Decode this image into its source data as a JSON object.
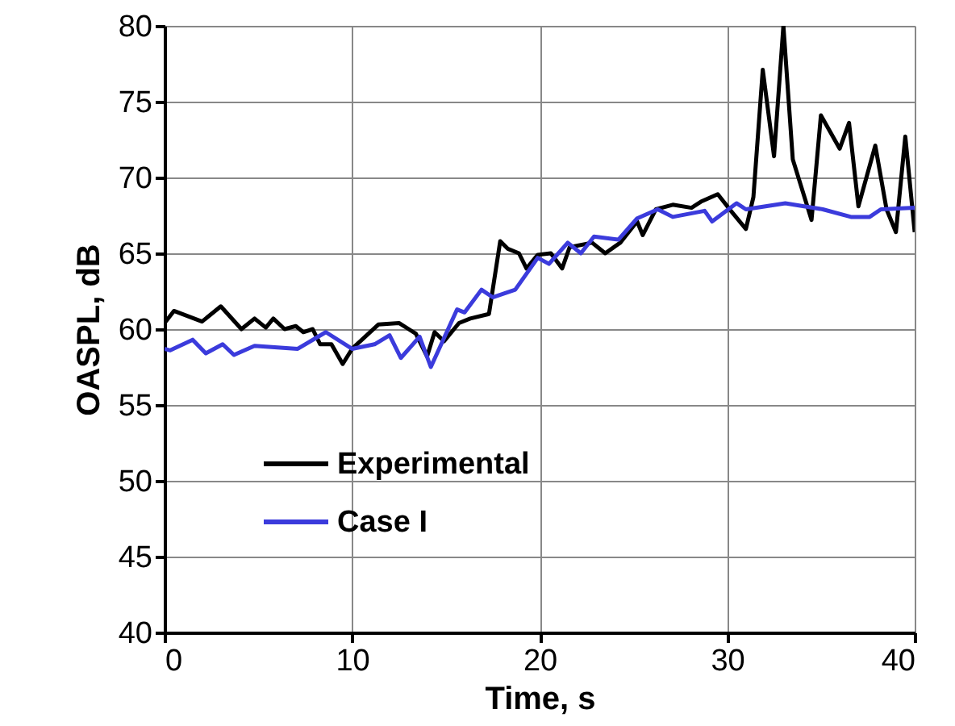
{
  "chart_data": {
    "type": "line",
    "xlabel": "Time, s",
    "ylabel": "OASPL, dB",
    "xlim": [
      0,
      40
    ],
    "xticks": [
      0,
      10,
      20,
      30,
      40
    ],
    "ylim": [
      40,
      80
    ],
    "yticks": [
      40,
      45,
      50,
      55,
      60,
      65,
      70,
      75,
      80
    ],
    "grid": true,
    "legend": "bottom left",
    "line_style": "solid",
    "marker": "none",
    "series": [
      {
        "name": "Experimental",
        "color": "#000000",
        "x": [
          0,
          0.5,
          2,
          3,
          4.1,
          4.8,
          5.4,
          5.8,
          6.4,
          7,
          7.4,
          7.9,
          8.3,
          8.9,
          9.5,
          10,
          11.4,
          12.5,
          13.4,
          14,
          14.4,
          14.9,
          15.7,
          16.3,
          17.3,
          17.9,
          18.3,
          18.9,
          19.3,
          19.9,
          20.6,
          21.2,
          21.6,
          22.8,
          23.5,
          24.3,
          25.2,
          25.5,
          26.2,
          27.1,
          28.1,
          28.6,
          29.5,
          30.2,
          31,
          31.4,
          31.9,
          32.5,
          33,
          33.5,
          34.5,
          35,
          36,
          36.5,
          37,
          37.9,
          38.5,
          39,
          39.5,
          40
        ],
        "values": [
          60.4,
          61.2,
          60.5,
          61.5,
          60,
          60.7,
          60.1,
          60.7,
          60,
          60.2,
          59.8,
          60,
          59,
          59,
          57.7,
          58.7,
          60.3,
          60.4,
          59.7,
          58.2,
          59.8,
          59.2,
          60.4,
          60.7,
          61,
          65.8,
          65.3,
          65,
          64,
          64.9,
          65,
          64,
          65.4,
          65.7,
          65,
          65.7,
          67.1,
          66.2,
          67.9,
          68.2,
          68,
          68.4,
          68.9,
          67.8,
          66.6,
          68.7,
          77.1,
          71.4,
          80,
          71.2,
          67.2,
          74.1,
          71.9,
          73.6,
          68.1,
          72.1,
          67.9,
          66.4,
          72.7,
          66.4
        ]
      },
      {
        "name": "Case I",
        "color": "#3b3bdc",
        "x": [
          0,
          0.3,
          1.5,
          2.2,
          3.1,
          3.7,
          4.8,
          7.1,
          8.6,
          10,
          11.2,
          12,
          12.6,
          13.6,
          14.2,
          15.6,
          16,
          16.9,
          17.5,
          18.7,
          19.9,
          20.5,
          21.5,
          22.2,
          22.9,
          24.2,
          25.2,
          26.3,
          27.1,
          28.8,
          29.2,
          30.5,
          31,
          33.1,
          35.1,
          36.6,
          37.6,
          38.2,
          40
        ],
        "values": [
          58.7,
          58.6,
          59.3,
          58.4,
          59,
          58.3,
          58.9,
          58.7,
          59.8,
          58.7,
          59,
          59.6,
          58.1,
          59.5,
          57.5,
          61.3,
          61.1,
          62.6,
          62.1,
          62.6,
          64.7,
          64.3,
          65.7,
          65,
          66.1,
          65.9,
          67.3,
          67.9,
          67.4,
          67.8,
          67.1,
          68.3,
          67.9,
          68.3,
          67.9,
          67.4,
          67.4,
          67.9,
          68
        ]
      }
    ]
  }
}
